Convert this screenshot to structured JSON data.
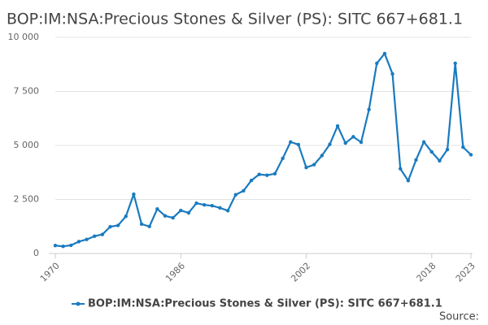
{
  "chart_data": {
    "type": "line",
    "title": "BOP:IM:NSA:Precious Stones & Silver (PS): SITC 667+681.1",
    "x": [
      1970,
      1971,
      1972,
      1973,
      1974,
      1975,
      1976,
      1977,
      1978,
      1979,
      1980,
      1981,
      1982,
      1983,
      1984,
      1985,
      1986,
      1987,
      1988,
      1989,
      1990,
      1991,
      1992,
      1993,
      1994,
      1995,
      1996,
      1997,
      1998,
      1999,
      2000,
      2001,
      2002,
      2003,
      2004,
      2005,
      2006,
      2007,
      2008,
      2009,
      2010,
      2011,
      2012,
      2013,
      2014,
      2015,
      2016,
      2017,
      2018,
      2019,
      2020,
      2021,
      2022,
      2023
    ],
    "series": [
      {
        "name": "BOP:IM:NSA:Precious Stones & Silver (PS): SITC 667+681.1",
        "color": "#1a7abf",
        "values": [
          370,
          330,
          380,
          550,
          650,
          800,
          880,
          1240,
          1300,
          1720,
          2740,
          1360,
          1250,
          2060,
          1740,
          1650,
          1990,
          1880,
          2330,
          2250,
          2210,
          2110,
          1980,
          2720,
          2900,
          3380,
          3660,
          3620,
          3690,
          4400,
          5160,
          5040,
          3980,
          4110,
          4530,
          5050,
          5900,
          5110,
          5400,
          5150,
          6660,
          8800,
          9250,
          8310,
          3920,
          3370,
          4330,
          5160,
          4700,
          4290,
          4810,
          8800,
          4920,
          4570
        ]
      }
    ],
    "xlim": [
      1970,
      2023
    ],
    "xticks": [
      1970,
      1986,
      2002,
      2018,
      2023
    ],
    "ylim": [
      0,
      10000
    ],
    "yticks": [
      0,
      {
        "value": 2500,
        "label": "2 500"
      },
      {
        "value": 5000,
        "label": "5 000"
      },
      {
        "value": 7500,
        "label": "7 500"
      },
      {
        "value": 10000,
        "label": "10 000"
      }
    ],
    "grid": true,
    "legend": "bottom",
    "source": "Source:"
  }
}
